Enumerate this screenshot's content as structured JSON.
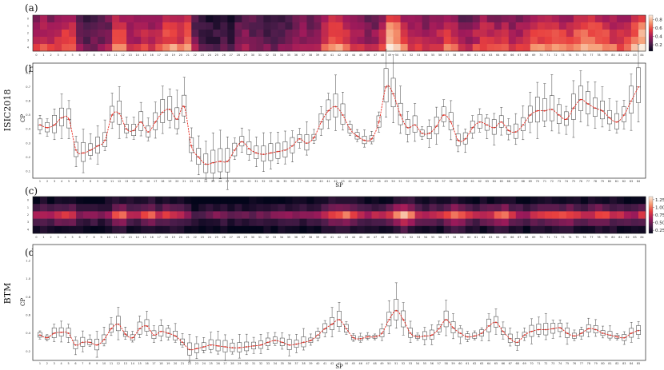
{
  "figure": {
    "row_labels": [
      "ISIC2018",
      "BTM"
    ],
    "palette": [
      "#03051a",
      "#4c1d4b",
      "#a11a5b",
      "#e83f3f",
      "#f69c73",
      "#faebdd"
    ]
  },
  "chart_data": [
    {
      "panel": "(a)",
      "type": "heatmap",
      "x": [
        0,
        1,
        2,
        3,
        4,
        5,
        6,
        7,
        8,
        9,
        10,
        11,
        12,
        13,
        14,
        15,
        16,
        17,
        18,
        19,
        20,
        21,
        22,
        23,
        24,
        25,
        26,
        27,
        28,
        29,
        30,
        31,
        32,
        33,
        34,
        35,
        36,
        37,
        38,
        39,
        40,
        41,
        42,
        43,
        44,
        45,
        46,
        47,
        48,
        49,
        50,
        51,
        52,
        53,
        54,
        55,
        56,
        57,
        58,
        59,
        60,
        61,
        62,
        63,
        64,
        65,
        66,
        67,
        68,
        69,
        70,
        71,
        72,
        73,
        74,
        75,
        76,
        77,
        78,
        79,
        80,
        81,
        82,
        83,
        84
      ],
      "rows": 5,
      "colorbar": {
        "ticks": [
          "0.8",
          "0.6",
          "0.4",
          "0.2"
        ],
        "range": [
          0.05,
          0.9
        ]
      }
    },
    {
      "panel": "(b)",
      "type": "box",
      "x": [
        1,
        2,
        3,
        4,
        5,
        6,
        7,
        8,
        9,
        10,
        11,
        12,
        13,
        14,
        15,
        16,
        17,
        18,
        19,
        20,
        21,
        22,
        23,
        24,
        25,
        26,
        27,
        28,
        29,
        30,
        31,
        32,
        33,
        34,
        35,
        36,
        37,
        38,
        39,
        40,
        41,
        42,
        43,
        44,
        45,
        46,
        47,
        48,
        49,
        50,
        51,
        52,
        53,
        54,
        55,
        56,
        57,
        58,
        59,
        60,
        61,
        62,
        63,
        64,
        65,
        66,
        67,
        68,
        69,
        70,
        71,
        72,
        73,
        74,
        75,
        76,
        77,
        78,
        79,
        80,
        81,
        82,
        83,
        84
      ],
      "y": [
        0.43,
        0.41,
        0.43,
        0.48,
        0.47,
        0.25,
        0.23,
        0.25,
        0.28,
        0.32,
        0.5,
        0.51,
        0.4,
        0.39,
        0.45,
        0.38,
        0.45,
        0.52,
        0.54,
        0.47,
        0.56,
        0.28,
        0.2,
        0.15,
        0.16,
        0.17,
        0.17,
        0.25,
        0.31,
        0.26,
        0.23,
        0.22,
        0.23,
        0.24,
        0.25,
        0.28,
        0.33,
        0.3,
        0.34,
        0.45,
        0.53,
        0.56,
        0.5,
        0.4,
        0.35,
        0.32,
        0.33,
        0.45,
        0.7,
        0.65,
        0.5,
        0.41,
        0.43,
        0.37,
        0.37,
        0.42,
        0.5,
        0.45,
        0.32,
        0.33,
        0.41,
        0.45,
        0.43,
        0.41,
        0.45,
        0.39,
        0.38,
        0.43,
        0.5,
        0.53,
        0.53,
        0.54,
        0.5,
        0.47,
        0.55,
        0.61,
        0.58,
        0.55,
        0.53,
        0.48,
        0.45,
        0.5,
        0.6,
        0.7
      ],
      "xlabel": "SP",
      "ylabel": "CP",
      "yticks": [
        "0.1",
        "0.2",
        "0.3",
        "0.4",
        "0.5",
        "0.6",
        "0.7",
        "0.8"
      ],
      "ylim": [
        0.05,
        0.87
      ]
    },
    {
      "panel": "(c)",
      "type": "heatmap",
      "x": [
        0,
        1,
        2,
        3,
        4,
        5,
        6,
        7,
        8,
        9,
        10,
        11,
        12,
        13,
        14,
        15,
        16,
        17,
        18,
        19,
        20,
        21,
        22,
        23,
        24,
        25,
        26,
        27,
        28,
        29,
        30,
        31,
        32,
        33,
        34,
        35,
        36,
        37,
        38,
        39,
        40,
        41,
        42,
        43,
        44,
        45,
        46,
        47,
        48,
        49,
        50,
        51,
        52,
        53,
        54,
        55,
        56,
        57,
        58,
        59,
        60,
        61,
        62,
        63,
        64,
        65,
        66,
        67,
        68,
        69,
        70,
        71,
        72,
        73,
        74,
        75,
        76,
        77,
        78,
        79,
        80,
        81,
        82,
        83,
        84
      ],
      "rows": 5,
      "colorbar": {
        "ticks": [
          "1.25",
          "1.00",
          "0.75",
          "0.50",
          "0.25"
        ],
        "range": [
          0.15,
          1.35
        ]
      }
    },
    {
      "panel": "(d)",
      "type": "box",
      "x": [
        1,
        2,
        3,
        4,
        5,
        6,
        7,
        8,
        9,
        10,
        11,
        12,
        13,
        14,
        15,
        16,
        17,
        18,
        19,
        20,
        21,
        22,
        23,
        24,
        25,
        26,
        27,
        28,
        29,
        30,
        31,
        32,
        33,
        34,
        35,
        36,
        37,
        38,
        39,
        40,
        41,
        42,
        43,
        44,
        45,
        46,
        47,
        48,
        49,
        50,
        51,
        52,
        53,
        54,
        55,
        56,
        57,
        58,
        59,
        60,
        61,
        62,
        63,
        64,
        65,
        66,
        67,
        68,
        69,
        70,
        71,
        72,
        73,
        74,
        75,
        76,
        77,
        78,
        79,
        80,
        81,
        82,
        83,
        84,
        85
      ],
      "y": [
        0.38,
        0.35,
        0.4,
        0.41,
        0.4,
        0.27,
        0.3,
        0.3,
        0.27,
        0.33,
        0.45,
        0.5,
        0.39,
        0.35,
        0.45,
        0.48,
        0.38,
        0.42,
        0.4,
        0.37,
        0.3,
        0.22,
        0.23,
        0.25,
        0.27,
        0.26,
        0.25,
        0.24,
        0.24,
        0.25,
        0.26,
        0.27,
        0.3,
        0.32,
        0.3,
        0.27,
        0.28,
        0.3,
        0.32,
        0.38,
        0.45,
        0.5,
        0.55,
        0.45,
        0.35,
        0.34,
        0.36,
        0.36,
        0.4,
        0.55,
        0.65,
        0.55,
        0.4,
        0.36,
        0.37,
        0.38,
        0.45,
        0.55,
        0.46,
        0.4,
        0.36,
        0.37,
        0.4,
        0.48,
        0.52,
        0.42,
        0.34,
        0.3,
        0.38,
        0.42,
        0.44,
        0.44,
        0.45,
        0.46,
        0.4,
        0.37,
        0.4,
        0.45,
        0.44,
        0.4,
        0.38,
        0.36,
        0.35,
        0.4,
        0.43
      ],
      "xlabel": "SP",
      "ylabel": "CP",
      "yticks": [
        "0.2",
        "0.4",
        "0.6",
        "0.8",
        "1.0",
        "1.2"
      ],
      "ylim": [
        0.1,
        1.38
      ]
    }
  ]
}
